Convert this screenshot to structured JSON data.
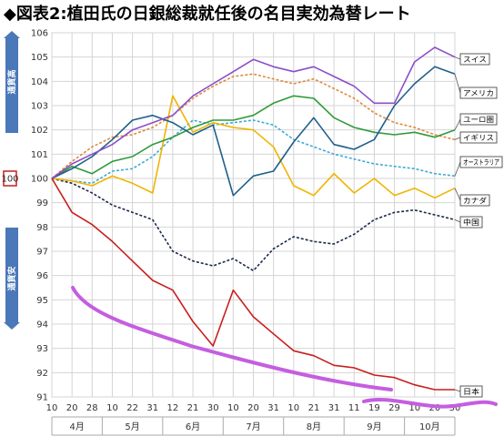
{
  "title": "◆図表2:植田氏の日銀総裁就任後の名目実効為替レート",
  "colors": {
    "スイス": "#8c4ec9",
    "アメリカ": "#1f5f8b",
    "ユーロ圏": "#2f9a3a",
    "イギリス": "#e08a3c",
    "オーストラリア": "#3fa9d8",
    "カナダ": "#f0b400",
    "中国": "#1b2a4a",
    "日本": "#c81e1e",
    "annotation": "#c45ee0",
    "axis_box": "#4a78b8"
  },
  "chart_data": {
    "type": "line",
    "title": "◆図表2:植田氏の日銀総裁就任後の名目実効為替レート",
    "ylim": [
      91,
      106
    ],
    "yticks": [
      91,
      92,
      93,
      94,
      95,
      96,
      97,
      98,
      99,
      100,
      101,
      102,
      103,
      104,
      105,
      106
    ],
    "xticks": [
      "10",
      "20",
      "28",
      "10",
      "22",
      "31",
      "12",
      "21",
      "30",
      "10",
      "20",
      "31",
      "10",
      "21",
      "31",
      "11",
      "19",
      "29",
      "10",
      "20",
      "30"
    ],
    "months": [
      "4月",
      "5月",
      "6月",
      "7月",
      "8月",
      "9月",
      "10月"
    ],
    "grid": true,
    "highlight_value": "100",
    "side_labels": {
      "top": "通貨高",
      "bottom": "通貨安"
    },
    "series": [
      {
        "name": "スイス",
        "style": "solid",
        "values": [
          100.0,
          100.6,
          101.0,
          101.4,
          102.0,
          102.3,
          102.6,
          103.4,
          103.9,
          104.4,
          104.9,
          104.6,
          104.4,
          104.6,
          104.2,
          103.8,
          103.1,
          103.1,
          104.8,
          105.4,
          105.0
        ]
      },
      {
        "name": "アメリカ",
        "style": "solid",
        "values": [
          100.0,
          100.4,
          100.9,
          101.6,
          102.4,
          102.6,
          102.3,
          101.8,
          102.2,
          99.3,
          100.1,
          100.3,
          101.5,
          102.5,
          101.4,
          101.2,
          101.6,
          103.0,
          103.9,
          104.6,
          104.3
        ]
      },
      {
        "name": "ユーロ圏",
        "style": "solid",
        "values": [
          100.0,
          100.5,
          100.2,
          100.7,
          100.9,
          101.4,
          101.7,
          102.1,
          102.4,
          102.4,
          102.6,
          103.1,
          103.4,
          103.3,
          102.5,
          102.1,
          101.9,
          101.8,
          101.9,
          101.7,
          102.0
        ]
      },
      {
        "name": "イギリス",
        "style": "dashed",
        "values": [
          100.0,
          100.7,
          101.3,
          101.7,
          101.8,
          102.1,
          102.6,
          103.3,
          103.8,
          104.2,
          104.3,
          104.1,
          103.9,
          104.1,
          103.7,
          103.3,
          102.7,
          102.3,
          102.1,
          101.8,
          101.6
        ]
      },
      {
        "name": "オーストラリア",
        "style": "dashed",
        "values": [
          100.0,
          99.9,
          99.8,
          100.3,
          100.4,
          100.9,
          101.7,
          102.4,
          102.2,
          102.3,
          102.4,
          102.2,
          101.6,
          101.3,
          101.0,
          100.8,
          100.6,
          100.5,
          100.4,
          100.2,
          100.1
        ]
      },
      {
        "name": "カナダ",
        "style": "solid",
        "values": [
          100.0,
          99.9,
          99.7,
          100.1,
          99.8,
          99.4,
          103.4,
          101.9,
          102.3,
          102.1,
          102.0,
          101.3,
          99.7,
          99.3,
          100.2,
          99.4,
          100.0,
          99.3,
          99.6,
          99.2,
          99.6
        ]
      },
      {
        "name": "中国",
        "style": "dashed",
        "values": [
          100.0,
          99.8,
          99.4,
          98.9,
          98.6,
          98.3,
          97.0,
          96.6,
          96.4,
          96.7,
          96.2,
          97.1,
          97.6,
          97.4,
          97.3,
          97.7,
          98.3,
          98.6,
          98.7,
          98.5,
          98.3
        ]
      },
      {
        "name": "日本",
        "style": "solid",
        "values": [
          100.0,
          98.6,
          98.1,
          97.4,
          96.6,
          95.8,
          95.4,
          94.1,
          93.1,
          95.4,
          94.3,
          93.6,
          92.9,
          92.7,
          92.3,
          92.2,
          91.9,
          91.8,
          91.5,
          91.3,
          91.3
        ]
      }
    ]
  }
}
